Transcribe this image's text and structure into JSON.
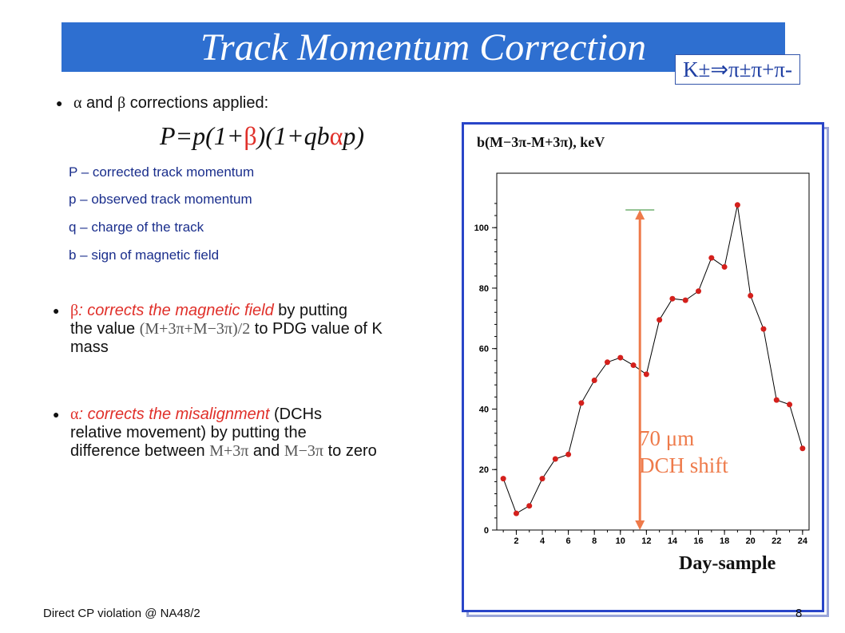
{
  "title": "Track Momentum Correction",
  "decay": "K±⇒π±π+π-",
  "bullets": {
    "b1_a": "α",
    "b1_text": " and ",
    "b1_b": "β",
    "b1_tail": " corrections applied:",
    "formula_p1": "P=p(1+",
    "formula_b": "β",
    "formula_p2": ")(1+qb",
    "formula_a": "α",
    "formula_p3": "p)",
    "defs": [
      "P – corrected track momentum",
      "p – observed track momentum",
      "q – charge of the track",
      "b – sign of magnetic field"
    ],
    "beta_sym": "β",
    "beta_red": ": corrects the magnetic field",
    "beta_t1": " by putting",
    "beta_t2a": "the value ",
    "beta_math": "(M+3π+M−3π)/2",
    "beta_t2b": " to PDG value of K",
    "beta_t3": "mass",
    "alpha_sym": "α",
    "alpha_red": ": corrects the misalignment",
    "alpha_t1": " (DCHs",
    "alpha_t2": "relative movement) by putting the",
    "alpha_t3a": "difference between ",
    "alpha_m1": "M+3π",
    "alpha_t3b": " and ",
    "alpha_m2": "M−3π",
    "alpha_t3c": " to zero"
  },
  "plot": {
    "ylabel_text": "b(M−3π-M+3π), keV",
    "annotation_1": "70 μm",
    "annotation_2": "DCH shift",
    "xlabel": "Day-sample"
  },
  "chart_data": {
    "type": "line",
    "x": [
      1,
      2,
      3,
      4,
      5,
      6,
      7,
      8,
      9,
      10,
      11,
      12,
      13,
      14,
      15,
      16,
      17,
      18,
      19,
      20,
      21,
      22,
      23,
      24
    ],
    "y": [
      17,
      5.5,
      8,
      17,
      23.5,
      25,
      42,
      49.5,
      55.5,
      57,
      54.5,
      51.5,
      69.5,
      76.5,
      76,
      79,
      90,
      87,
      107.5,
      77.5,
      66.5,
      43,
      41.5,
      27
    ],
    "xlim": [
      0.5,
      24.5
    ],
    "ylim": [
      0,
      118
    ],
    "xticks": [
      2,
      4,
      6,
      8,
      10,
      12,
      14,
      16,
      18,
      20,
      22,
      24
    ],
    "yticks": [
      0,
      20,
      40,
      60,
      80,
      100
    ],
    "marker_color": "#d4201c",
    "line_color": "#000000",
    "arrow_x": 11.5,
    "arrow_color": "#ee7a4a",
    "grid": false
  },
  "footer": {
    "left": "Direct CP violation @ NA48/2",
    "page": "8"
  }
}
